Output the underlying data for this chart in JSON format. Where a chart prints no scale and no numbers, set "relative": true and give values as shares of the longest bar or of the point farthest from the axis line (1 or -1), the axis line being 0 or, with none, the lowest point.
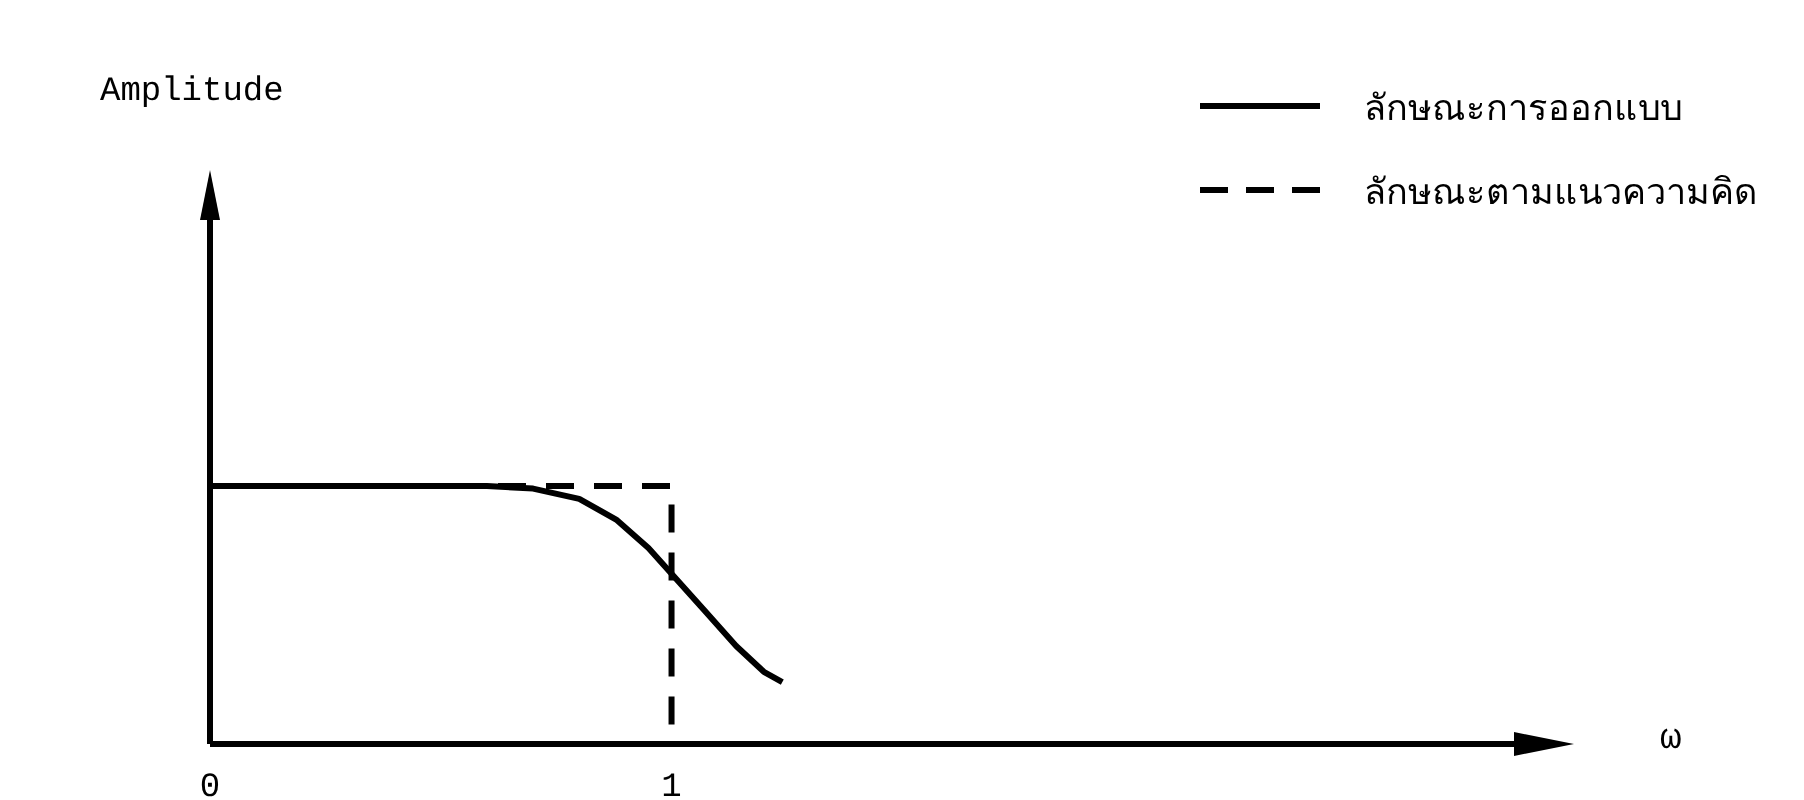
{
  "chart_data": {
    "type": "line",
    "relative": true,
    "xlabel": "ω",
    "annotations": [
      "Amplitude"
    ],
    "xlim": [
      0,
      2.86
    ],
    "xticks": [
      0,
      1
    ],
    "grid": false,
    "legend": "top right",
    "marker": "none",
    "series": [
      {
        "name": "ลักษณะการออกแบบ",
        "color": "#000000",
        "line_style": "solid",
        "x": [
          0,
          0.6,
          0.7,
          0.8,
          0.88,
          0.95,
          1.0,
          1.07,
          1.14,
          1.2,
          1.24
        ],
        "values": [
          1,
          1,
          0.99,
          0.95,
          0.87,
          0.76,
          0.66,
          0.52,
          0.38,
          0.28,
          0.24
        ]
      },
      {
        "name": "ลักษณะตามแนวความคิด",
        "color": "#000000",
        "line_style": "dashed",
        "x": [
          0,
          1,
          1
        ],
        "values": [
          1,
          1,
          0
        ]
      }
    ]
  }
}
